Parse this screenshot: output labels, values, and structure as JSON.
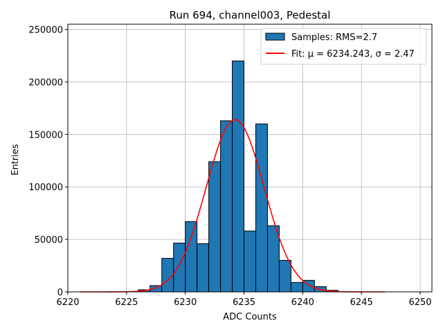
{
  "chart_data": {
    "type": "bar",
    "title": "Run 694, channel003, Pedestal",
    "xlabel": "ADC Counts",
    "ylabel": "Entries",
    "xlim": [
      6220,
      6251
    ],
    "ylim": [
      0,
      255000
    ],
    "xticks": [
      6220,
      6225,
      6230,
      6235,
      6240,
      6245,
      6250
    ],
    "yticks": [
      0,
      50000,
      100000,
      150000,
      200000,
      250000
    ],
    "grid": true,
    "legend_position": "top-right",
    "bar_color": "#1f77b4",
    "fit_color": "#ff0000",
    "bins": [
      {
        "x0": 6226,
        "x1": 6227,
        "value": 2000
      },
      {
        "x0": 6227,
        "x1": 6228,
        "value": 6000
      },
      {
        "x0": 6228,
        "x1": 6229,
        "value": 32000
      },
      {
        "x0": 6229,
        "x1": 6230,
        "value": 46500
      },
      {
        "x0": 6230,
        "x1": 6231,
        "value": 67000
      },
      {
        "x0": 6231,
        "x1": 6232,
        "value": 46000
      },
      {
        "x0": 6232,
        "x1": 6233,
        "value": 124000
      },
      {
        "x0": 6233,
        "x1": 6234,
        "value": 163000
      },
      {
        "x0": 6234,
        "x1": 6235,
        "value": 220000
      },
      {
        "x0": 6235,
        "x1": 6236,
        "value": 58000
      },
      {
        "x0": 6236,
        "x1": 6237,
        "value": 160000
      },
      {
        "x0": 6237,
        "x1": 6238,
        "value": 63000
      },
      {
        "x0": 6238,
        "x1": 6239,
        "value": 30000
      },
      {
        "x0": 6239,
        "x1": 6240,
        "value": 9000
      },
      {
        "x0": 6240,
        "x1": 6241,
        "value": 11000
      },
      {
        "x0": 6241,
        "x1": 6242,
        "value": 5000
      },
      {
        "x0": 6242,
        "x1": 6243,
        "value": 1500
      }
    ],
    "fit": {
      "mu": 6234.243,
      "sigma": 2.47,
      "amplitude": 164000,
      "x_range": [
        6221,
        6247
      ]
    },
    "legend": {
      "samples_label": "Samples: RMS=2.7",
      "fit_label": "Fit: μ = 6234.243, σ = 2.47"
    }
  }
}
